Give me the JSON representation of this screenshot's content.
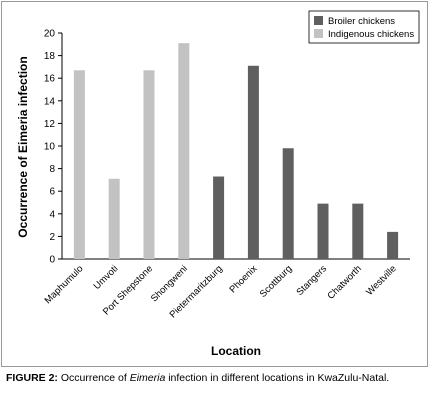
{
  "chart_data": {
    "type": "bar",
    "categories": [
      "Maphumulo",
      "Umvoti",
      "Port Shepstone",
      "Shongweni",
      "Pietermaritzburg",
      "Phoenix",
      "Scottburg",
      "Stangers",
      "Chatworth",
      "Westville"
    ],
    "series": [
      {
        "name": "Broiler chickens",
        "color": "#5f5f5f",
        "values": [
          null,
          null,
          null,
          null,
          7.3,
          17.1,
          9.8,
          4.9,
          4.9,
          2.4
        ]
      },
      {
        "name": "Indigenous chickens",
        "color": "#c2c2c2",
        "values": [
          16.7,
          7.1,
          16.7,
          19.1,
          null,
          null,
          null,
          null,
          null,
          null
        ]
      }
    ],
    "xlabel": "Location",
    "ylabel": "Occurrence of Eimeria infection",
    "ylim": [
      0,
      20
    ],
    "yticks": [
      0,
      2,
      4,
      6,
      8,
      10,
      12,
      14,
      16,
      18,
      20
    ],
    "grid": false,
    "legend_position": "top-right"
  },
  "caption": {
    "label": "FIGURE 2:",
    "text_before": " Occurrence of ",
    "emphasis": "Eimeria",
    "text_after": " infection in different locations in KwaZulu-Natal."
  }
}
